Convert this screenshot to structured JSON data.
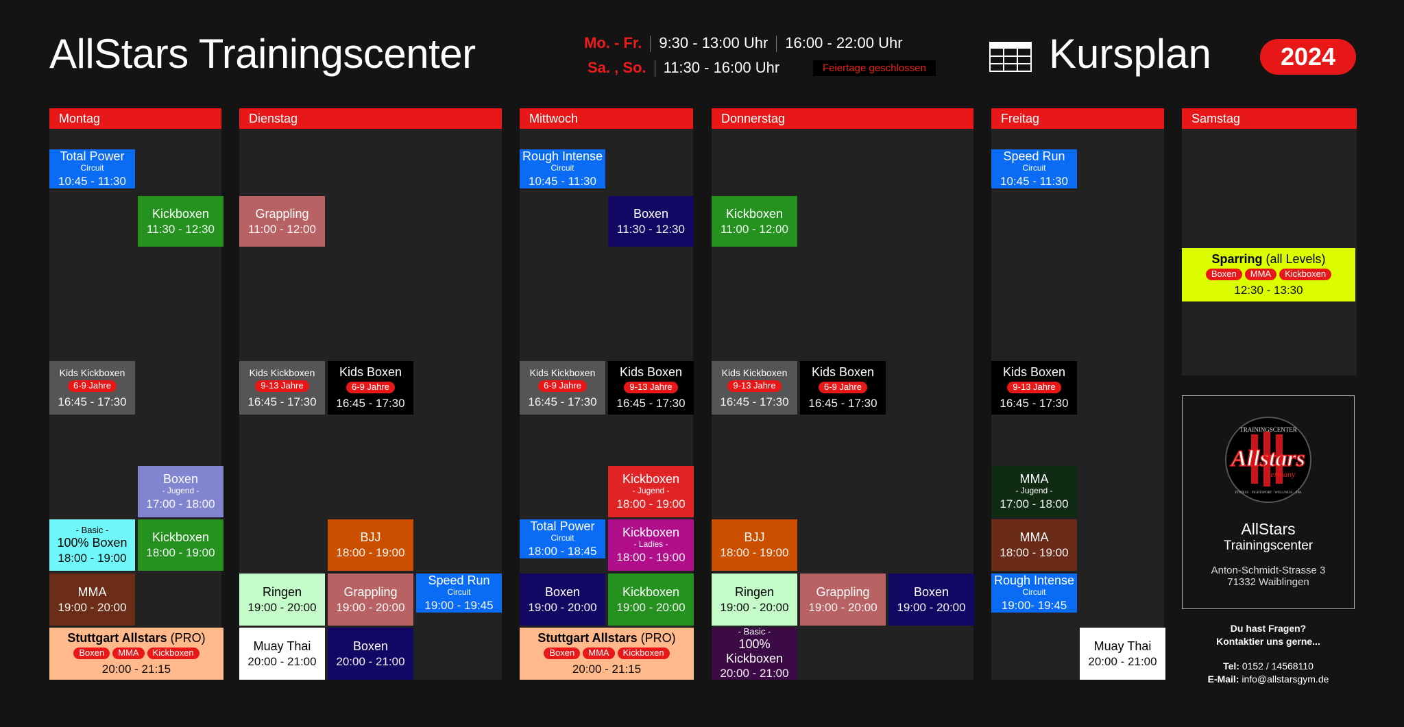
{
  "header": {
    "title": "AllStars Trainingscenter",
    "weekday_label": "Mo. - Fr.",
    "weekday_hours_1": "9:30 - 13:00 Uhr",
    "weekday_hours_2": "16:00 - 22:00 Uhr",
    "weekend_label": "Sa. , So.",
    "weekend_hours": "11:30 - 16:00 Uhr",
    "holiday_note": "Feiertage geschlossen",
    "schedule_title": "Kursplan",
    "year": "2024",
    "icon": "table-icon"
  },
  "colors": {
    "accent": "#e81818",
    "background": "#141414",
    "column": "#222222"
  },
  "days": [
    {
      "name": "Montag",
      "blocks": [
        {
          "title": "Total Power",
          "sub": "Circuit",
          "time": "10:45 - 11:30",
          "color": "#0a6cf5"
        },
        {
          "title": "Kickboxen",
          "time": "11:30 - 12:30",
          "color": "#25921f"
        },
        {
          "title": "Kids Kickboxen",
          "tags": [
            "6-9 Jahre"
          ],
          "time": "16:45 - 17:30",
          "color": "#555555"
        },
        {
          "title": "Boxen",
          "sub": "- Jugend -",
          "time": "17:00 - 18:00",
          "color": "#8185cf"
        },
        {
          "pre": "- Basic -",
          "title": "100% Boxen",
          "time": "18:00 - 19:00",
          "color": "#6ff7f9",
          "text": "#000"
        },
        {
          "title": "Kickboxen",
          "time": "18:00 - 19:00",
          "color": "#25921f"
        },
        {
          "title": "MMA",
          "time": "19:00 - 20:00",
          "color": "#6b2d17"
        },
        {
          "title": "Stuttgart Allstars",
          "suffix": " (PRO)",
          "tags": [
            "Boxen",
            "MMA",
            "Kickboxen"
          ],
          "time": "20:00 - 21:15",
          "color": "#ffb98a",
          "text": "#000"
        }
      ]
    },
    {
      "name": "Dienstag",
      "blocks": [
        {
          "title": "Grappling",
          "time": "11:00 - 12:00",
          "color": "#b86264"
        },
        {
          "title": "Kids Kickboxen",
          "tags": [
            "9-13  Jahre"
          ],
          "time": "16:45 - 17:30",
          "color": "#555555"
        },
        {
          "title": "Kids Boxen",
          "tags": [
            "6-9 Jahre"
          ],
          "time": "16:45 - 17:30",
          "color": "#000000"
        },
        {
          "title": "BJJ",
          "time": "18:00 - 19:00",
          "color": "#cc4f00"
        },
        {
          "title": "Ringen",
          "time": "19:00 - 20:00",
          "color": "#c5fbc8",
          "text": "#000"
        },
        {
          "title": "Grappling",
          "time": "19:00 - 20:00",
          "color": "#b86264"
        },
        {
          "title": "Speed Run",
          "sub": "Circuit",
          "time": "19:00 - 19:45",
          "color": "#0a6cf5"
        },
        {
          "title": "Muay Thai",
          "time": "20:00 - 21:00",
          "color": "#ffffff",
          "text": "#000"
        },
        {
          "title": "Boxen",
          "time": "20:00 - 21:00",
          "color": "#120763"
        }
      ]
    },
    {
      "name": "Mittwoch",
      "blocks": [
        {
          "title": "Rough Intense",
          "sub": "Circuit",
          "time": "10:45 - 11:30",
          "color": "#0a6cf5"
        },
        {
          "title": "Boxen",
          "time": "11:30 - 12:30",
          "color": "#120763"
        },
        {
          "title": "Kids Kickboxen",
          "tags": [
            "6-9 Jahre"
          ],
          "time": "16:45 - 17:30",
          "color": "#555555"
        },
        {
          "title": "Kids Boxen",
          "tags": [
            "9-13 Jahre"
          ],
          "time": "16:45 - 17:30",
          "color": "#000000"
        },
        {
          "title": "Kickboxen",
          "sub": "- Jugend -",
          "time": "18:00 - 19:00",
          "color": "#e02325"
        },
        {
          "title": "Total Power",
          "sub": "Circuit",
          "time": "18:00 - 18:45",
          "color": "#0a6cf5"
        },
        {
          "title": "Kickboxen",
          "sub": "- Ladies -",
          "time": "18:00 - 19:00",
          "color": "#b10e8c"
        },
        {
          "title": "Boxen",
          "time": "19:00 - 20:00",
          "color": "#120763"
        },
        {
          "title": "Kickboxen",
          "time": "19:00 - 20:00",
          "color": "#25921f"
        },
        {
          "title": "Stuttgart Allstars",
          "suffix": " (PRO)",
          "tags": [
            "Boxen",
            "MMA",
            "Kickboxen"
          ],
          "time": "20:00 - 21:15",
          "color": "#ffb98a",
          "text": "#000"
        }
      ]
    },
    {
      "name": "Donnerstag",
      "blocks": [
        {
          "title": "Kickboxen",
          "time": "11:00 - 12:00",
          "color": "#25921f"
        },
        {
          "title": "Kids Kickboxen",
          "tags": [
            "9-13 Jahre"
          ],
          "time": "16:45 - 17:30",
          "color": "#555555"
        },
        {
          "title": "Kids Boxen",
          "tags": [
            "6-9 Jahre"
          ],
          "time": "16:45 - 17:30",
          "color": "#000000"
        },
        {
          "title": "BJJ",
          "time": "18:00 - 19:00",
          "color": "#cc4f00"
        },
        {
          "title": "Ringen",
          "time": "19:00 - 20:00",
          "color": "#c5fbc8",
          "text": "#000"
        },
        {
          "title": "Grappling",
          "time": "19:00 - 20:00",
          "color": "#b86264"
        },
        {
          "title": "Boxen",
          "time": "19:00 - 20:00",
          "color": "#120763"
        },
        {
          "pre": "- Basic -",
          "title": "100% Kickboxen",
          "time": "20:00 - 21:00",
          "color": "#3c0a45"
        }
      ]
    },
    {
      "name": "Freitag",
      "blocks": [
        {
          "title": "Speed Run",
          "sub": "Circuit",
          "time": "10:45 - 11:30",
          "color": "#0a6cf5"
        },
        {
          "title": "Kids Boxen",
          "tags": [
            "9-13 Jahre"
          ],
          "time": "16:45 - 17:30",
          "color": "#000000"
        },
        {
          "title": "MMA",
          "sub": "- Jugend -",
          "time": "17:00 - 18:00",
          "color": "#0f2b14"
        },
        {
          "title": "MMA",
          "time": "18:00 - 19:00",
          "color": "#6a2c19"
        },
        {
          "title": "Rough Intense",
          "sub": "Circuit",
          "time": "19:00- 19:45",
          "color": "#0a6cf5"
        },
        {
          "title": "Muay Thai",
          "time": "20:00 - 21:00",
          "color": "#ffffff",
          "text": "#000"
        }
      ]
    },
    {
      "name": "Samstag",
      "blocks": [
        {
          "title": "Sparring",
          "suffix": " (all Levels)",
          "tags": [
            "Boxen",
            "MMA",
            "Kickboxen"
          ],
          "time": "12:30 - 13:30",
          "color": "#dcfc00",
          "text": "#000"
        }
      ]
    }
  ],
  "info": {
    "logo_text": [
      "TRAININGSCENTER",
      "Allstars",
      "Germany",
      "FITNESS · FIGHTSPORT · WELLNESS · SPA"
    ],
    "name_1": "AllStars",
    "name_2": "Trainingscenter",
    "address_1": "Anton-Schmidt-Strasse 3",
    "address_2": "71332 Waiblingen",
    "question_1": "Du hast Fragen?",
    "question_2": "Kontaktier uns gerne...",
    "tel_label": "Tel:",
    "tel": "0152 / 14568110",
    "email_label": "E-Mail:",
    "email": "info@allstarsgym.de"
  }
}
